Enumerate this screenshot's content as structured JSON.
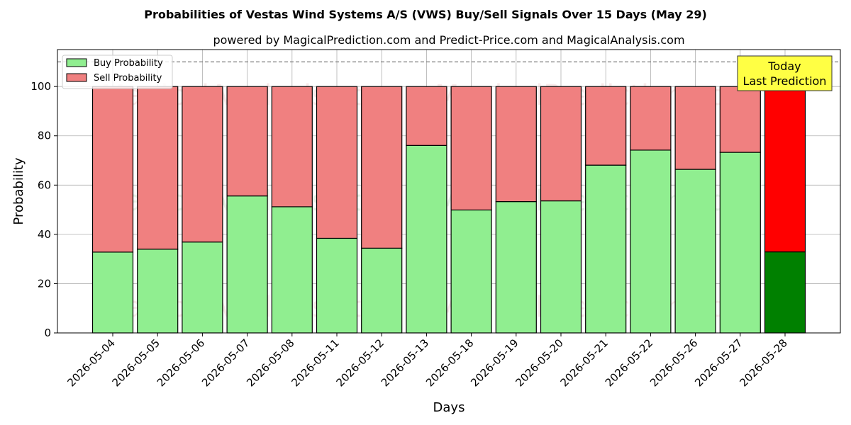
{
  "chart_data": {
    "type": "bar",
    "stacked": true,
    "title": "Probabilities of Vestas Wind Systems A/S (VWS) Buy/Sell Signals Over 15 Days (May 29)",
    "subtitle": "powered by MagicalPrediction.com and Predict-Price.com and MagicalAnalysis.com",
    "xlabel": "Days",
    "ylabel": "Probability",
    "ylim": [
      0,
      115
    ],
    "yticks": [
      0,
      20,
      40,
      60,
      80,
      100
    ],
    "reference_line": 110,
    "categories": [
      "2026-05-04",
      "2026-05-05",
      "2026-05-06",
      "2026-05-07",
      "2026-05-08",
      "2026-05-11",
      "2026-05-12",
      "2026-05-13",
      "2026-05-18",
      "2026-05-19",
      "2026-05-20",
      "2026-05-21",
      "2026-05-22",
      "2026-05-26",
      "2026-05-27",
      "2026-05-28"
    ],
    "series": [
      {
        "name": "Buy Probability",
        "color": "#90ee90",
        "values": [
          32.8,
          34.0,
          36.9,
          55.6,
          51.2,
          38.4,
          34.4,
          76.1,
          49.9,
          53.3,
          53.6,
          68.1,
          74.2,
          66.4,
          73.3,
          32.9
        ]
      },
      {
        "name": "Sell Probability",
        "color": "#f08080",
        "values": [
          67.2,
          66.0,
          63.1,
          44.4,
          48.8,
          61.6,
          65.6,
          23.9,
          50.1,
          46.7,
          46.4,
          31.9,
          25.8,
          33.6,
          26.7,
          67.1
        ]
      }
    ],
    "highlight": {
      "index": 15,
      "buy_color": "#008000",
      "sell_color": "#ff0000"
    },
    "legend": "top-left",
    "grid": true,
    "annotation": "Today\nLast Prediction",
    "watermarks": [
      "MagicalAnalysis.com",
      "MagicalPrediction.com"
    ]
  }
}
